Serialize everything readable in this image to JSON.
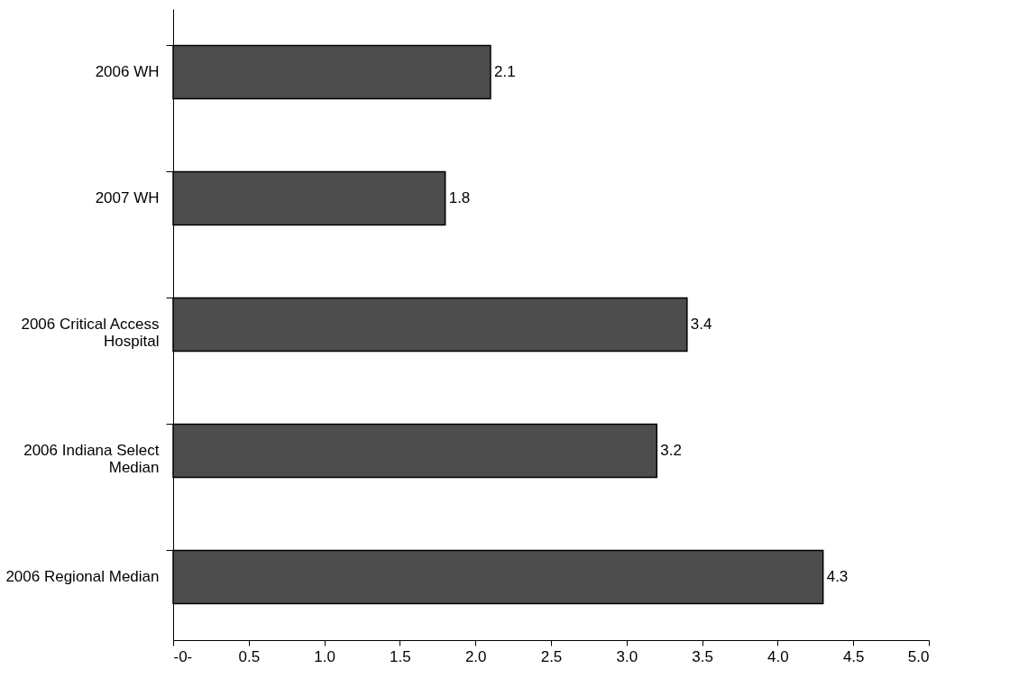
{
  "chart_data": {
    "type": "bar",
    "orientation": "horizontal",
    "categories": [
      "2006 WH",
      "2007 WH",
      "2006 Critical Access Hospital",
      "2006 Indiana Select Median",
      "2006 Regional Median"
    ],
    "values": [
      2.1,
      1.8,
      3.4,
      3.2,
      4.3
    ],
    "color": "#4d4d4d",
    "xlim": [
      0,
      5
    ],
    "xticks": [
      {
        "value": 0,
        "label": "-0-"
      },
      0.5,
      {
        "value": 1,
        "label": "1.0"
      },
      1.5,
      {
        "value": 2,
        "label": "2.0"
      },
      2.5,
      {
        "value": 3,
        "label": "3.0"
      },
      3.5,
      {
        "value": 4,
        "label": "4.0"
      },
      4.5,
      {
        "value": 5,
        "label": "5.0"
      }
    ],
    "data_labels": true,
    "grid": false
  }
}
